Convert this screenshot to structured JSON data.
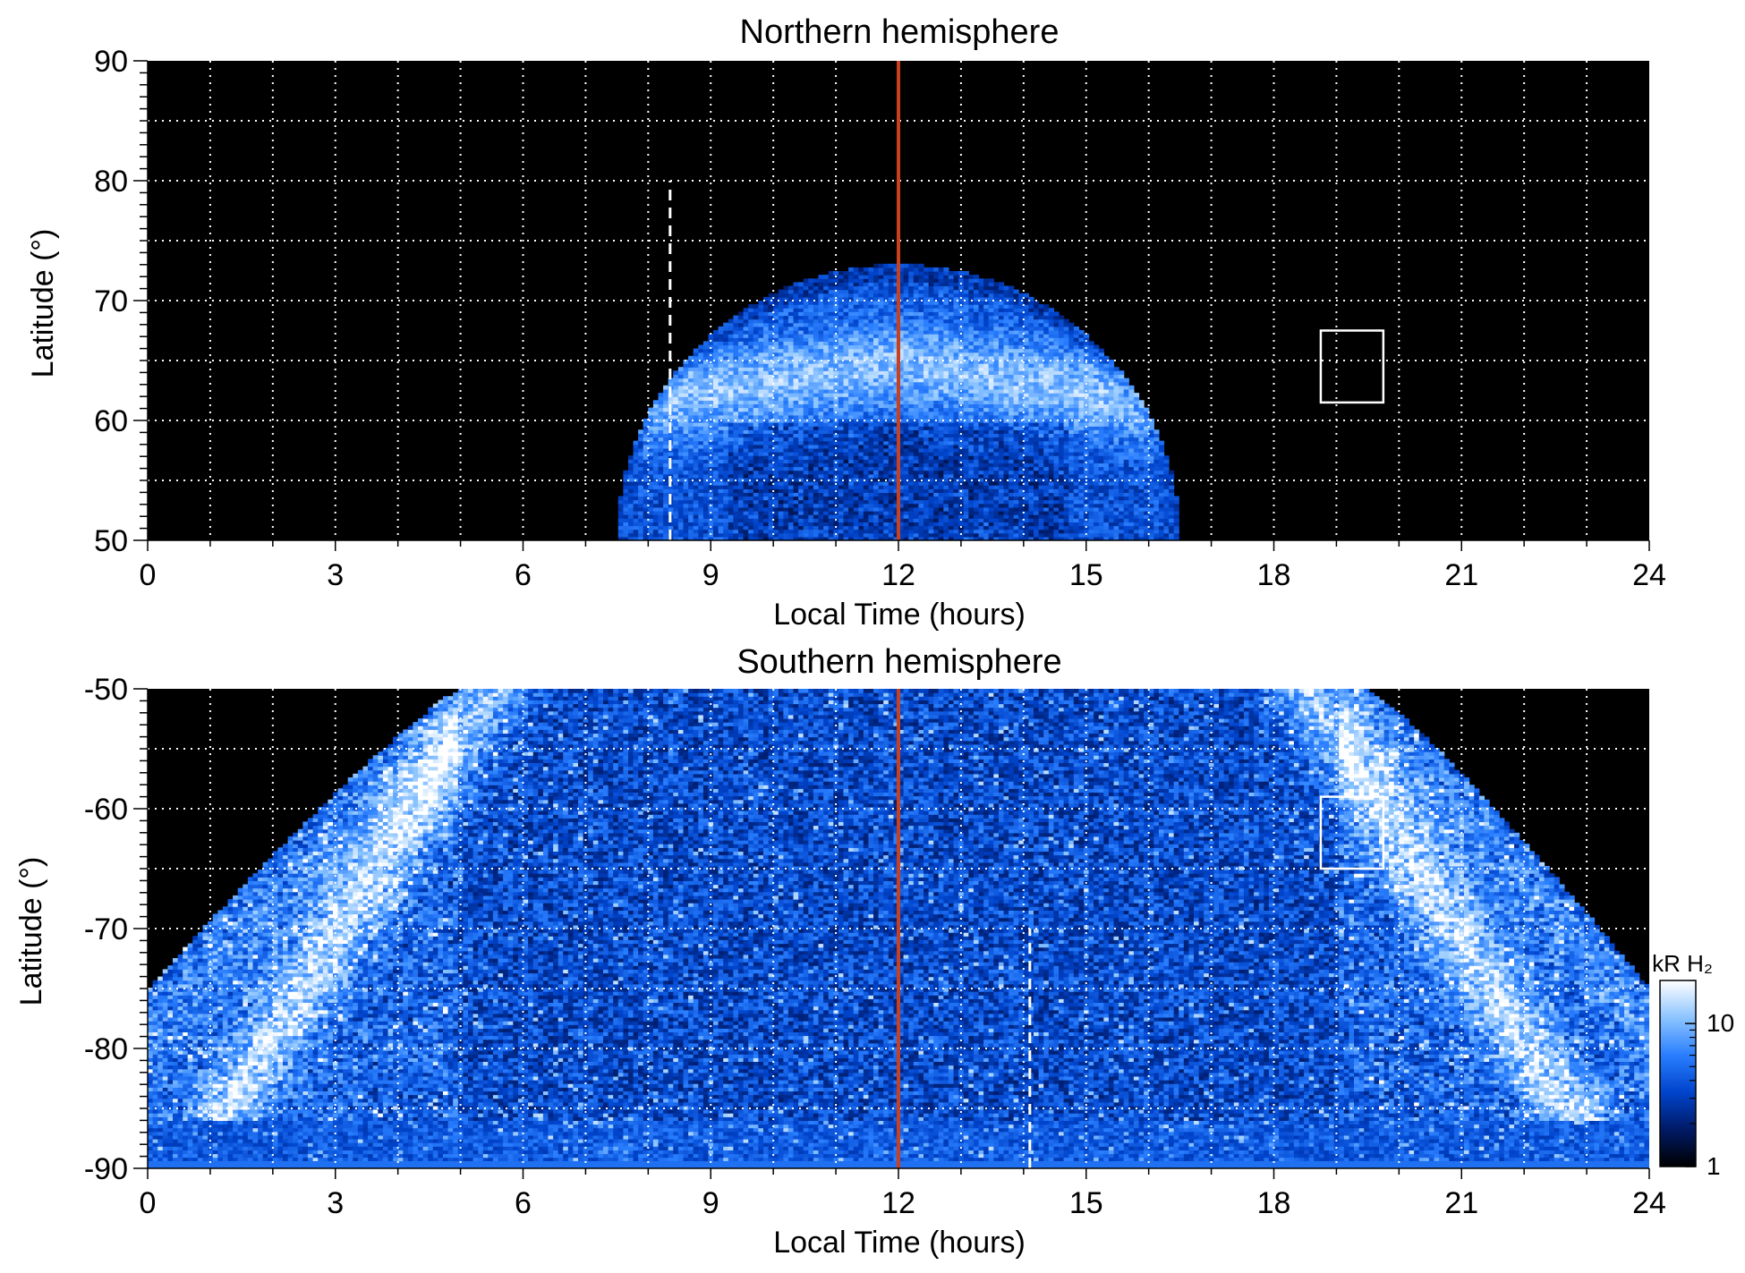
{
  "chart_data": [
    {
      "type": "heatmap",
      "title": "Northern hemisphere",
      "xlabel": "Local Time (hours)",
      "ylabel": "Latitude (°)",
      "xlim": [
        0,
        24
      ],
      "ylim": [
        50,
        90
      ],
      "x_ticks": [
        "0",
        "3",
        "6",
        "9",
        "12",
        "15",
        "18",
        "21",
        "24"
      ],
      "y_ticks": [
        "50",
        "60",
        "70",
        "80",
        "90"
      ],
      "x_tick_values": [
        0,
        3,
        6,
        9,
        12,
        15,
        18,
        21,
        24
      ],
      "y_tick_values": [
        50,
        60,
        70,
        80,
        90
      ],
      "grid": true,
      "background": "#000000",
      "emission_region": {
        "shape": "dome",
        "lt_range": [
          7.5,
          16.5
        ],
        "peak_lt": 12,
        "peak_latitude": 73,
        "bright_ring_latitude": [
          62,
          70
        ]
      },
      "reference_line": {
        "local_time": 12,
        "color": "#c8401e",
        "style": "solid"
      },
      "dashed_line": {
        "local_time": 8.35,
        "latitude_range": [
          50,
          80
        ],
        "color": "#ffffff"
      },
      "box": {
        "lt_range": [
          18.75,
          19.75
        ],
        "latitude_range": [
          61.5,
          67.5
        ],
        "color": "#ffffff"
      }
    },
    {
      "type": "heatmap",
      "title": "Southern hemisphere",
      "xlabel": "Local Time (hours)",
      "ylabel": "Latitude (°)",
      "xlim": [
        0,
        24
      ],
      "ylim": [
        -90,
        -50
      ],
      "x_ticks": [
        "0",
        "3",
        "6",
        "9",
        "12",
        "15",
        "18",
        "21",
        "24"
      ],
      "y_ticks": [
        "-90",
        "-80",
        "-70",
        "-60",
        "-50"
      ],
      "x_tick_values": [
        0,
        3,
        6,
        9,
        12,
        15,
        18,
        21,
        24
      ],
      "y_tick_values": [
        -90,
        -80,
        -70,
        -60,
        -50
      ],
      "grid": true,
      "background": "#000000",
      "emission_region": {
        "shape": "bowl",
        "lt_range": [
          0,
          24
        ],
        "full_coverage_lt": [
          5,
          19.5
        ],
        "edge_latitude": -75,
        "bright_oval_lt": [
          5.5,
          18.5
        ]
      },
      "reference_line": {
        "local_time": 12,
        "color": "#c8401e",
        "style": "solid"
      },
      "dashed_line": {
        "local_time": 14.1,
        "latitude_range": [
          -90,
          -70
        ],
        "color": "#ffffff"
      },
      "box": {
        "lt_range": [
          18.75,
          19.75
        ],
        "latitude_range": [
          -65,
          -59
        ],
        "color": "#ffffff"
      }
    }
  ],
  "colorbar": {
    "label": "kR H₂",
    "scale": "log",
    "range": [
      1,
      20
    ],
    "ticks": [
      "1",
      "10"
    ],
    "tick_values": [
      1,
      10
    ],
    "colors": [
      "#000000",
      "#001a66",
      "#0044cc",
      "#2a7fff",
      "#8cc4ff",
      "#ffffff"
    ]
  }
}
